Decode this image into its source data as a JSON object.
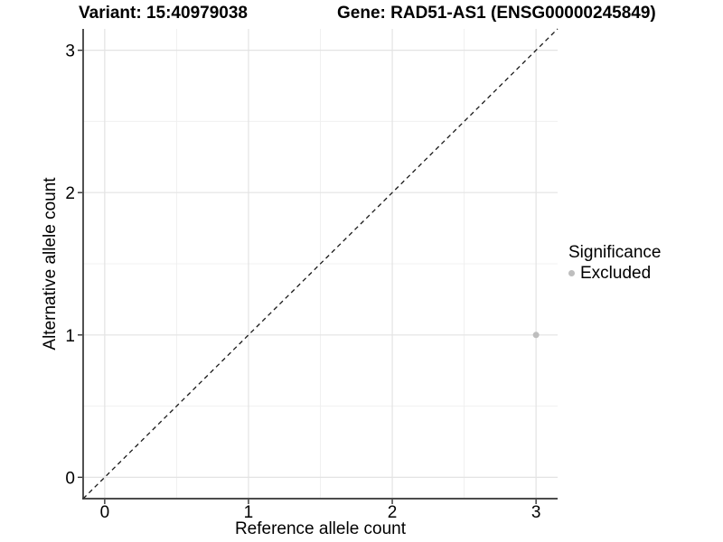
{
  "chart_data": {
    "type": "scatter",
    "title_left": "Variant: 15:40979038",
    "title_right": "Gene: RAD51-AS1 (ENSG00000245849)",
    "xlabel": "Reference allele count",
    "ylabel": "Alternative allele count",
    "xlim": [
      -0.15,
      3.15
    ],
    "ylim": [
      -0.15,
      3.15
    ],
    "xticks": [
      0,
      1,
      2,
      3
    ],
    "yticks": [
      0,
      1,
      2,
      3
    ],
    "xminor": [
      0.5,
      1.5,
      2.5
    ],
    "yminor": [
      0.5,
      1.5,
      2.5
    ],
    "grid": true,
    "identity_line": {
      "style": "dashed",
      "from": [
        -0.15,
        -0.15
      ],
      "to": [
        3.15,
        3.15
      ],
      "color": "#1a1a1a"
    },
    "points": [
      {
        "x": 3,
        "y": 1,
        "significance": "Excluded",
        "color": "#bebebe",
        "radius": 3.5
      }
    ],
    "legend": {
      "title": "Significance",
      "position": "right",
      "items": [
        {
          "label": "Excluded",
          "color": "#bebebe"
        }
      ]
    },
    "colors": {
      "grid_major": "#e3e3e3",
      "grid_minor": "#f0f0f0",
      "axis": "#333333",
      "text": "#000000",
      "background": "#ffffff"
    }
  }
}
